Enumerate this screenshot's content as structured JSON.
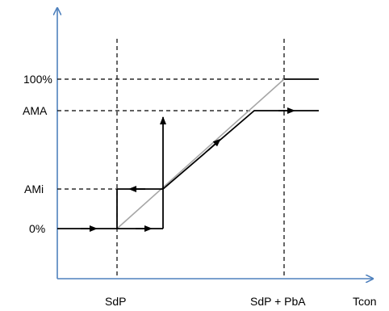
{
  "y_labels": {
    "full": "100%",
    "max": "AMA",
    "min": "AMi",
    "zero": "0%"
  },
  "x_labels": {
    "setpoint": "SdP",
    "setpoint_band": "SdP + PbA",
    "axis": "Tcon"
  },
  "colors": {
    "axis": "#4f81bd",
    "curve": "#000000",
    "ideal_line": "#a6a6a6",
    "guide": "#000000"
  }
}
